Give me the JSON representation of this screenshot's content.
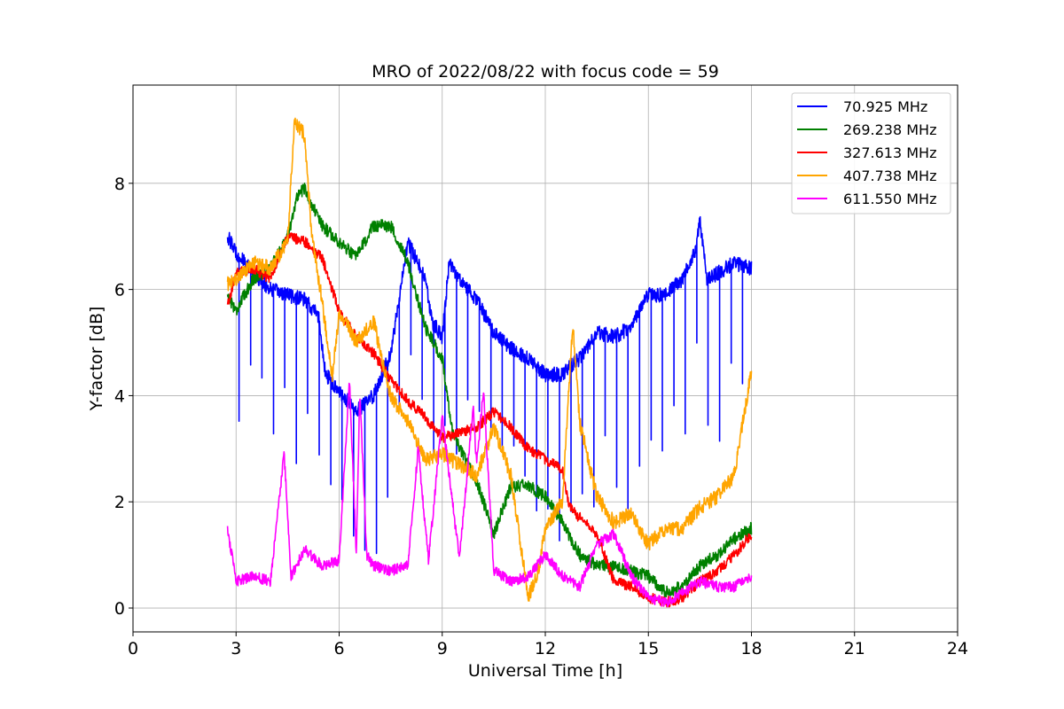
{
  "chart_data": {
    "type": "line",
    "title": "MRO of 2022/08/22 with focus code = 59",
    "xlabel": "Universal Time [h]",
    "ylabel": "Y-factor [dB]",
    "xlim": [
      0,
      24
    ],
    "ylim": [
      -0.45,
      9.85
    ],
    "xticks": [
      0,
      3,
      6,
      9,
      12,
      15,
      18,
      21,
      24
    ],
    "yticks": [
      0,
      2,
      4,
      6,
      8
    ],
    "grid": true,
    "legend_position": "top-right",
    "series": [
      {
        "name": " 70.925 MHz",
        "color": "#0000ff",
        "noise": 0.14,
        "spike_period": 0.333,
        "spike_depth": 2.6,
        "points": [
          [
            2.75,
            7.0
          ],
          [
            3.0,
            6.7
          ],
          [
            3.5,
            6.3
          ],
          [
            4.0,
            6.0
          ],
          [
            4.5,
            5.9
          ],
          [
            5.0,
            5.8
          ],
          [
            5.4,
            5.5
          ],
          [
            5.6,
            4.4
          ],
          [
            6.0,
            4.1
          ],
          [
            6.5,
            3.7
          ],
          [
            7.0,
            4.0
          ],
          [
            7.5,
            4.8
          ],
          [
            8.0,
            6.9
          ],
          [
            8.5,
            6.2
          ],
          [
            8.7,
            5.4
          ],
          [
            9.0,
            5.1
          ],
          [
            9.2,
            6.5
          ],
          [
            9.5,
            6.2
          ],
          [
            10.0,
            5.8
          ],
          [
            10.5,
            5.2
          ],
          [
            11.0,
            4.9
          ],
          [
            11.5,
            4.7
          ],
          [
            12.0,
            4.4
          ],
          [
            12.5,
            4.4
          ],
          [
            13.0,
            4.7
          ],
          [
            13.5,
            5.2
          ],
          [
            14.0,
            5.1
          ],
          [
            14.5,
            5.3
          ],
          [
            15.0,
            5.9
          ],
          [
            15.5,
            5.9
          ],
          [
            16.0,
            6.2
          ],
          [
            16.4,
            6.8
          ],
          [
            16.5,
            7.3
          ],
          [
            16.7,
            6.2
          ],
          [
            17.0,
            6.3
          ],
          [
            17.5,
            6.5
          ],
          [
            18.0,
            6.4
          ]
        ]
      },
      {
        "name": "269.238 MHz",
        "color": "#008000",
        "noise": 0.12,
        "spike_period": 0,
        "spike_depth": 0,
        "points": [
          [
            2.75,
            5.9
          ],
          [
            3.0,
            5.6
          ],
          [
            3.5,
            6.2
          ],
          [
            4.0,
            6.4
          ],
          [
            4.5,
            7.0
          ],
          [
            4.8,
            7.8
          ],
          [
            5.0,
            7.9
          ],
          [
            5.5,
            7.2
          ],
          [
            6.0,
            6.9
          ],
          [
            6.5,
            6.6
          ],
          [
            7.0,
            7.2
          ],
          [
            7.5,
            7.2
          ],
          [
            7.8,
            6.8
          ],
          [
            8.0,
            6.5
          ],
          [
            8.5,
            5.3
          ],
          [
            9.0,
            4.7
          ],
          [
            9.3,
            3.3
          ],
          [
            9.5,
            3.0
          ],
          [
            10.0,
            2.4
          ],
          [
            10.5,
            1.4
          ],
          [
            11.0,
            2.3
          ],
          [
            11.5,
            2.3
          ],
          [
            12.0,
            2.1
          ],
          [
            12.5,
            1.6
          ],
          [
            13.0,
            1.0
          ],
          [
            13.5,
            0.8
          ],
          [
            14.0,
            0.8
          ],
          [
            14.5,
            0.7
          ],
          [
            15.0,
            0.6
          ],
          [
            15.5,
            0.3
          ],
          [
            16.0,
            0.4
          ],
          [
            16.5,
            0.8
          ],
          [
            17.0,
            1.0
          ],
          [
            17.5,
            1.3
          ],
          [
            18.0,
            1.5
          ]
        ]
      },
      {
        "name": "327.613 MHz",
        "color": "#ff0000",
        "noise": 0.1,
        "spike_period": 0,
        "spike_depth": 0,
        "points": [
          [
            2.75,
            5.7
          ],
          [
            3.0,
            6.3
          ],
          [
            3.5,
            6.4
          ],
          [
            4.0,
            6.2
          ],
          [
            4.5,
            7.0
          ],
          [
            5.0,
            6.9
          ],
          [
            5.5,
            6.6
          ],
          [
            6.0,
            5.6
          ],
          [
            6.5,
            5.1
          ],
          [
            7.0,
            4.8
          ],
          [
            7.5,
            4.3
          ],
          [
            8.0,
            3.9
          ],
          [
            8.5,
            3.6
          ],
          [
            9.0,
            3.2
          ],
          [
            9.5,
            3.3
          ],
          [
            10.0,
            3.4
          ],
          [
            10.5,
            3.7
          ],
          [
            11.0,
            3.4
          ],
          [
            11.5,
            3.0
          ],
          [
            12.0,
            2.8
          ],
          [
            12.5,
            2.6
          ],
          [
            12.7,
            1.9
          ],
          [
            13.0,
            1.7
          ],
          [
            13.5,
            1.4
          ],
          [
            14.0,
            0.5
          ],
          [
            14.5,
            0.4
          ],
          [
            15.0,
            0.2
          ],
          [
            15.5,
            0.1
          ],
          [
            16.0,
            0.2
          ],
          [
            16.5,
            0.5
          ],
          [
            17.0,
            0.7
          ],
          [
            17.5,
            1.0
          ],
          [
            18.0,
            1.4
          ]
        ]
      },
      {
        "name": "407.738 MHz",
        "color": "#ffa500",
        "noise": 0.14,
        "spike_period": 0,
        "spike_depth": 0,
        "points": [
          [
            2.75,
            6.1
          ],
          [
            3.0,
            6.2
          ],
          [
            3.5,
            6.5
          ],
          [
            4.0,
            6.4
          ],
          [
            4.5,
            6.9
          ],
          [
            4.7,
            9.2
          ],
          [
            5.0,
            8.9
          ],
          [
            5.2,
            7.0
          ],
          [
            5.5,
            5.8
          ],
          [
            5.8,
            4.3
          ],
          [
            6.0,
            5.6
          ],
          [
            6.5,
            5.0
          ],
          [
            7.0,
            5.4
          ],
          [
            7.5,
            4.0
          ],
          [
            8.0,
            3.5
          ],
          [
            8.5,
            2.8
          ],
          [
            9.0,
            2.9
          ],
          [
            9.5,
            2.7
          ],
          [
            10.0,
            2.5
          ],
          [
            10.5,
            3.4
          ],
          [
            11.0,
            2.5
          ],
          [
            11.5,
            0.2
          ],
          [
            11.8,
            0.7
          ],
          [
            12.0,
            1.5
          ],
          [
            12.5,
            2.0
          ],
          [
            12.8,
            5.4
          ],
          [
            13.0,
            3.5
          ],
          [
            13.5,
            2.1
          ],
          [
            14.0,
            1.6
          ],
          [
            14.5,
            1.8
          ],
          [
            15.0,
            1.2
          ],
          [
            15.5,
            1.5
          ],
          [
            16.0,
            1.5
          ],
          [
            16.5,
            1.9
          ],
          [
            17.0,
            2.1
          ],
          [
            17.5,
            2.5
          ],
          [
            18.0,
            4.5
          ]
        ]
      },
      {
        "name": "611.550 MHz",
        "color": "#ff00ff",
        "noise": 0.1,
        "spike_period": 0,
        "spike_depth": 0,
        "points": [
          [
            2.75,
            1.5
          ],
          [
            3.0,
            0.5
          ],
          [
            3.5,
            0.6
          ],
          [
            4.0,
            0.5
          ],
          [
            4.4,
            2.9
          ],
          [
            4.6,
            0.6
          ],
          [
            5.0,
            1.1
          ],
          [
            5.5,
            0.8
          ],
          [
            6.0,
            0.9
          ],
          [
            6.3,
            4.3
          ],
          [
            6.5,
            1.0
          ],
          [
            6.6,
            4.1
          ],
          [
            6.8,
            1.0
          ],
          [
            7.0,
            0.8
          ],
          [
            7.5,
            0.7
          ],
          [
            8.0,
            0.8
          ],
          [
            8.3,
            3.0
          ],
          [
            8.6,
            0.9
          ],
          [
            9.0,
            3.6
          ],
          [
            9.5,
            0.9
          ],
          [
            9.9,
            3.8
          ],
          [
            10.0,
            2.7
          ],
          [
            10.2,
            4.1
          ],
          [
            10.5,
            0.7
          ],
          [
            11.0,
            0.5
          ],
          [
            11.5,
            0.6
          ],
          [
            12.0,
            1.0
          ],
          [
            12.5,
            0.6
          ],
          [
            13.0,
            0.4
          ],
          [
            13.5,
            1.2
          ],
          [
            14.0,
            1.4
          ],
          [
            14.5,
            0.6
          ],
          [
            15.0,
            0.2
          ],
          [
            15.5,
            0.1
          ],
          [
            16.0,
            0.3
          ],
          [
            16.5,
            0.5
          ],
          [
            17.0,
            0.4
          ],
          [
            17.5,
            0.4
          ],
          [
            18.0,
            0.6
          ]
        ]
      }
    ]
  }
}
